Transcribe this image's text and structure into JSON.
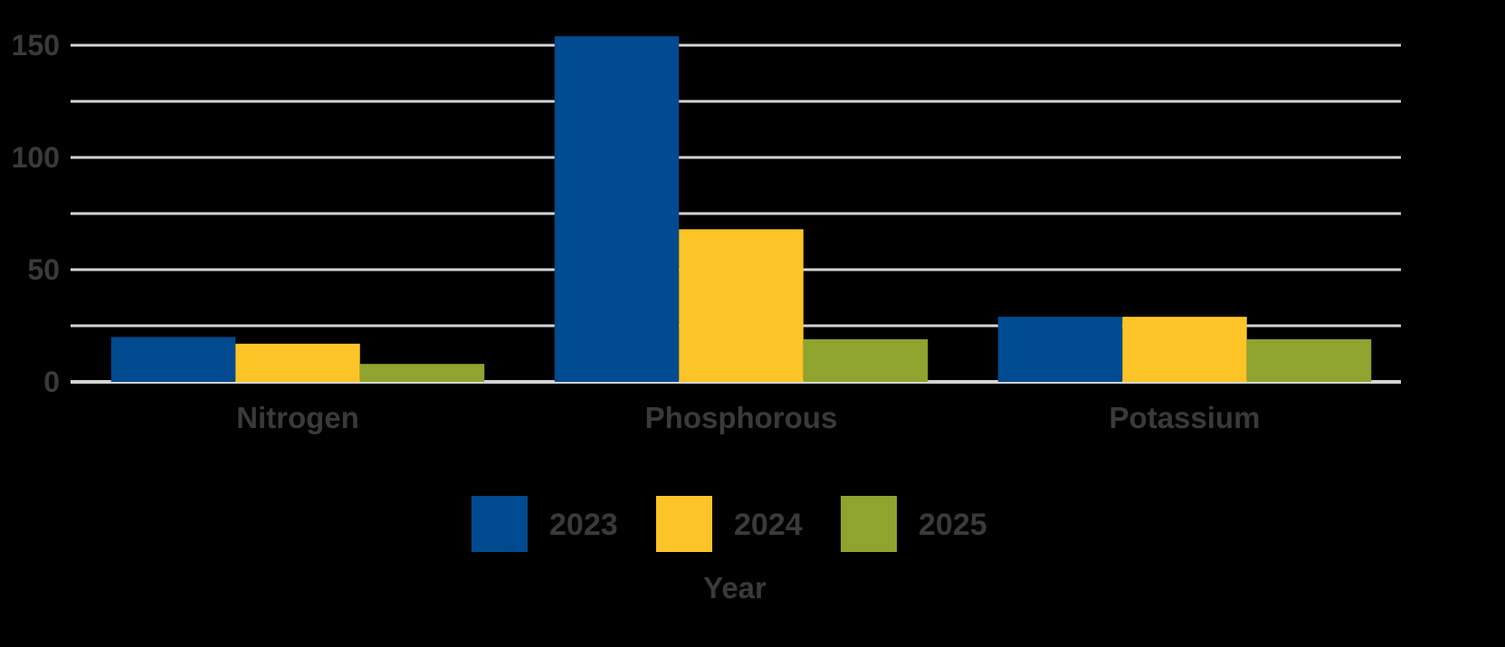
{
  "chart_data": {
    "type": "bar",
    "categories": [
      "Nitrogen",
      "Phosphorous",
      "Potassium"
    ],
    "series": [
      {
        "name": "2023",
        "color": "#004a8f",
        "values": [
          20,
          154,
          29
        ]
      },
      {
        "name": "2024",
        "color": "#fdc427",
        "values": [
          17,
          68,
          29
        ]
      },
      {
        "name": "2025",
        "color": "#8fa32f",
        "values": [
          8,
          19,
          19
        ]
      }
    ],
    "title": "",
    "xlabel": "",
    "ylabel": "",
    "ylim": [
      0,
      150
    ],
    "yticks": [
      "0",
      "50",
      "100",
      "150"
    ],
    "minor_gridlines": [
      25,
      75,
      125
    ],
    "grid": true,
    "legend": {
      "title": "Year",
      "placement": "bottom-center"
    },
    "background": "#000000"
  }
}
